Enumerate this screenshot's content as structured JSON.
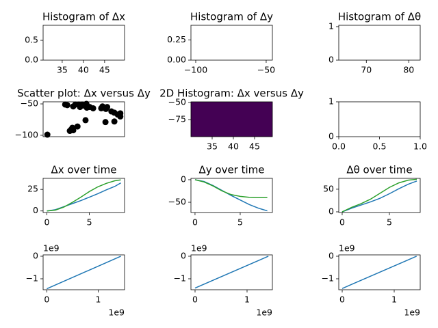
{
  "chart_data": [
    {
      "type": "histogram",
      "title": "Histogram of Δx",
      "xlim": [
        30.5,
        49.7
      ],
      "xticks": [
        35,
        40,
        45
      ],
      "ylim": [
        0,
        0.88
      ],
      "yticks": [
        {
          "value": 0,
          "label": "0.0"
        },
        {
          "value": 0.5,
          "label": "0.5"
        }
      ]
    },
    {
      "type": "histogram",
      "title": "Histogram of Δy",
      "xlim": [
        -103.4,
        -45.6
      ],
      "xticks": [
        {
          "value": -100,
          "label": "−100"
        },
        {
          "value": -50,
          "label": "−50"
        }
      ],
      "ylim": [
        0,
        0.43
      ],
      "yticks": [
        {
          "value": 0,
          "label": "0.00"
        },
        {
          "value": 0.25,
          "label": "0.25"
        }
      ]
    },
    {
      "type": "histogram",
      "title": "Histogram of Δθ",
      "xlim": [
        63.5,
        82.7
      ],
      "xticks": [
        70,
        80
      ],
      "ylim": [
        0,
        1.04
      ],
      "yticks": [
        0,
        1
      ]
    },
    {
      "type": "scatter",
      "title": "Scatter plot: Δx versus Δy",
      "color": "#000000",
      "xlim": [
        30.5,
        49.7
      ],
      "ylim": [
        -102.2,
        -46.7
      ],
      "yticks": [
        {
          "value": -50,
          "label": "−50"
        },
        {
          "value": -100,
          "label": "−100"
        }
      ],
      "x": [
        31.5,
        35.7,
        36.2,
        37.6,
        38.1,
        38.9,
        39.2,
        39.7,
        40.3,
        40.7,
        40.8,
        41.5,
        42.3,
        44.2,
        44.5,
        45.3,
        45.6,
        46.6,
        47.3,
        48.1,
        48.7,
        48.7,
        45.2,
        47.3,
        40.5,
        38.6,
        37.4,
        37.1,
        36.8,
        37.6
      ],
      "values": [
        -99,
        -51,
        -52,
        -54,
        -51,
        -51,
        -55,
        -51,
        -53,
        -50,
        -56,
        -55,
        -57,
        -57,
        -54,
        -58,
        -55,
        -62,
        -64,
        -67,
        -70,
        -65,
        -79,
        -78,
        -76,
        -86,
        -88,
        -91,
        -93,
        -92
      ]
    },
    {
      "type": "hist2d",
      "title": "2D Histogram: Δx versus Δy",
      "color": "#440154",
      "xlim": [
        30,
        49.2
      ],
      "xticks": [
        35,
        40,
        45
      ],
      "ylim": [
        -100,
        -49
      ],
      "yticks": [
        {
          "value": -50,
          "label": "−50"
        },
        {
          "value": -75,
          "label": "−75"
        }
      ]
    },
    {
      "type": "line",
      "xlim": [
        0,
        1
      ],
      "xticks": [
        {
          "value": 0,
          "label": "0.0"
        },
        {
          "value": 0.5,
          "label": "0.5"
        },
        {
          "value": 1,
          "label": "1.0"
        }
      ],
      "ylim": [
        0,
        1
      ],
      "yticks": [
        0,
        1
      ]
    },
    {
      "type": "line",
      "title": "Δx over time",
      "xlim": [
        -0.44,
        9.14
      ],
      "xticks": [
        0,
        5
      ],
      "ylim": [
        -1.8,
        37.8
      ],
      "yticks": [
        0,
        25
      ],
      "x": [
        0,
        1,
        2,
        3,
        4,
        5,
        6,
        7,
        8,
        8.7
      ],
      "series": [
        {
          "color": "#1f77b4",
          "values": [
            0,
            1.5,
            5,
            8.5,
            12,
            16,
            20,
            24.5,
            28.5,
            32.5
          ]
        },
        {
          "color": "#2ca02c",
          "values": [
            0,
            1,
            4.5,
            10,
            16,
            22.5,
            28,
            32,
            35,
            36
          ]
        }
      ]
    },
    {
      "type": "line",
      "title": "Δy over time",
      "xlim": [
        -0.45,
        8.56
      ],
      "xticks": [
        0,
        5
      ],
      "ylim": [
        -72.7,
        3
      ],
      "yticks": [
        0,
        {
          "value": -50,
          "label": "−50"
        }
      ],
      "x": [
        0,
        1,
        2,
        3,
        4,
        5,
        6,
        7,
        8
      ],
      "series": [
        {
          "color": "#1f77b4",
          "values": [
            0,
            -4,
            -13,
            -24,
            -35,
            -45,
            -55,
            -63,
            -69
          ]
        },
        {
          "color": "#2ca02c",
          "values": [
            0,
            -5,
            -14,
            -25,
            -33,
            -37,
            -39,
            -39.5,
            -39.5
          ]
        }
      ]
    },
    {
      "type": "line",
      "title": "Δθ over time",
      "xlim": [
        -0.36,
        8.26
      ],
      "xticks": [
        0,
        5
      ],
      "ylim": [
        -1.5,
        74
      ],
      "yticks": [
        0,
        50
      ],
      "x": [
        0,
        1,
        2,
        3,
        4,
        5,
        6,
        7,
        7.9
      ],
      "series": [
        {
          "color": "#1f77b4",
          "values": [
            0,
            8,
            15,
            22,
            30,
            40,
            51,
            61,
            68
          ]
        },
        {
          "color": "#2ca02c",
          "values": [
            0,
            10,
            18,
            28,
            41,
            54,
            64,
            70,
            72
          ]
        }
      ]
    },
    {
      "type": "line",
      "x_offset_label": "1e9",
      "y_offset_label": "1e9",
      "xlim": [
        -72000000,
        1512000000
      ],
      "xticks": [
        0,
        {
          "value": 1000000000,
          "label": "1"
        }
      ],
      "ylim": [
        -1485000000,
        60000000
      ],
      "yticks": [
        0,
        {
          "value": -1000000000,
          "label": "−1"
        }
      ],
      "x": [
        0,
        1440000000
      ],
      "series": [
        {
          "color": "#1f77b4",
          "values": [
            -1440000000,
            0
          ]
        }
      ]
    },
    {
      "type": "line",
      "x_offset_label": "1e9",
      "y_offset_label": "1e9",
      "xlim": [
        -79000000,
        1487000000
      ],
      "xticks": [
        0,
        {
          "value": 1000000000,
          "label": "1"
        }
      ],
      "ylim": [
        -1485000000,
        60000000
      ],
      "yticks": [
        0,
        {
          "value": -1000000000,
          "label": "−1"
        }
      ],
      "x": [
        0,
        1410000000
      ],
      "series": [
        {
          "color": "#1f77b4",
          "values": [
            -1410000000,
            0
          ]
        }
      ]
    },
    {
      "type": "line",
      "x_offset_label": "1e9",
      "y_offset_label": "1e9",
      "xlim": [
        -66000000,
        1500000000
      ],
      "xticks": [
        0,
        {
          "value": 1000000000,
          "label": "1"
        }
      ],
      "ylim": [
        -1485000000,
        60000000
      ],
      "yticks": [
        0,
        {
          "value": -1000000000,
          "label": "−1"
        }
      ],
      "x": [
        0,
        1430000000
      ],
      "series": [
        {
          "color": "#1f77b4",
          "values": [
            -1430000000,
            0
          ]
        }
      ]
    }
  ]
}
